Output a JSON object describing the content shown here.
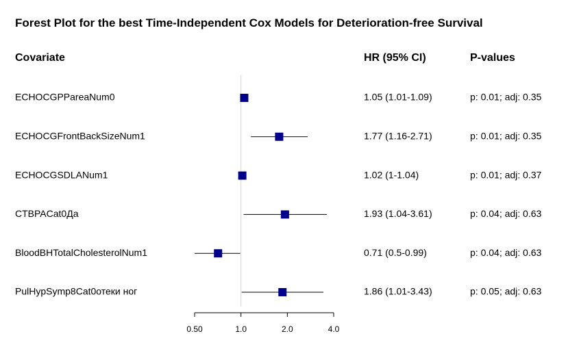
{
  "chart_data": {
    "type": "forest",
    "title": "Forest Plot for the best Time-Independent Cox Models for Deterioration-free Survival",
    "headers": {
      "covariate": "Covariate",
      "hr": "HR (95% CI)",
      "p": "P-values"
    },
    "x_scale": "log",
    "xlim": [
      0.5,
      4.0
    ],
    "x_ticks": [
      0.5,
      1.0,
      2.0,
      4.0
    ],
    "x_tick_labels": [
      "0.50",
      "1.0",
      "2.0",
      "4.0"
    ],
    "reference_line": 1.0,
    "rows": [
      {
        "covariate": "ECHOCGPPareaNum0",
        "hr": 1.05,
        "lo": 1.01,
        "hi": 1.09,
        "hr_text": "1.05 (1.01-1.09)",
        "p_text": "p: 0.01; adj: 0.35"
      },
      {
        "covariate": "ECHOCGFrontBackSizeNum1",
        "hr": 1.77,
        "lo": 1.16,
        "hi": 2.71,
        "hr_text": "1.77 (1.16-2.71)",
        "p_text": "p: 0.01; adj: 0.35"
      },
      {
        "covariate": "ECHOCGSDLANum1",
        "hr": 1.02,
        "lo": 1.0,
        "hi": 1.04,
        "hr_text": "1.02 (1-1.04)",
        "p_text": "p: 0.01; adj: 0.37"
      },
      {
        "covariate": "CTBPACat0Да",
        "hr": 1.93,
        "lo": 1.04,
        "hi": 3.61,
        "hr_text": "1.93 (1.04-3.61)",
        "p_text": "p: 0.04; adj: 0.63"
      },
      {
        "covariate": "BloodBHTotalCholesterolNum1",
        "hr": 0.71,
        "lo": 0.5,
        "hi": 0.99,
        "hr_text": "0.71 (0.5-0.99)",
        "p_text": "p: 0.04; adj: 0.63"
      },
      {
        "covariate": "PulHypSymp8Cat0отеки ног",
        "hr": 1.86,
        "lo": 1.01,
        "hi": 3.43,
        "hr_text": "1.86 (1.01-3.43)",
        "p_text": "p: 0.05; adj: 0.63"
      }
    ],
    "colors": {
      "marker": "#00008B",
      "reference_line": "#d3d3d3",
      "ci_line": "#000000"
    },
    "grid": false
  }
}
